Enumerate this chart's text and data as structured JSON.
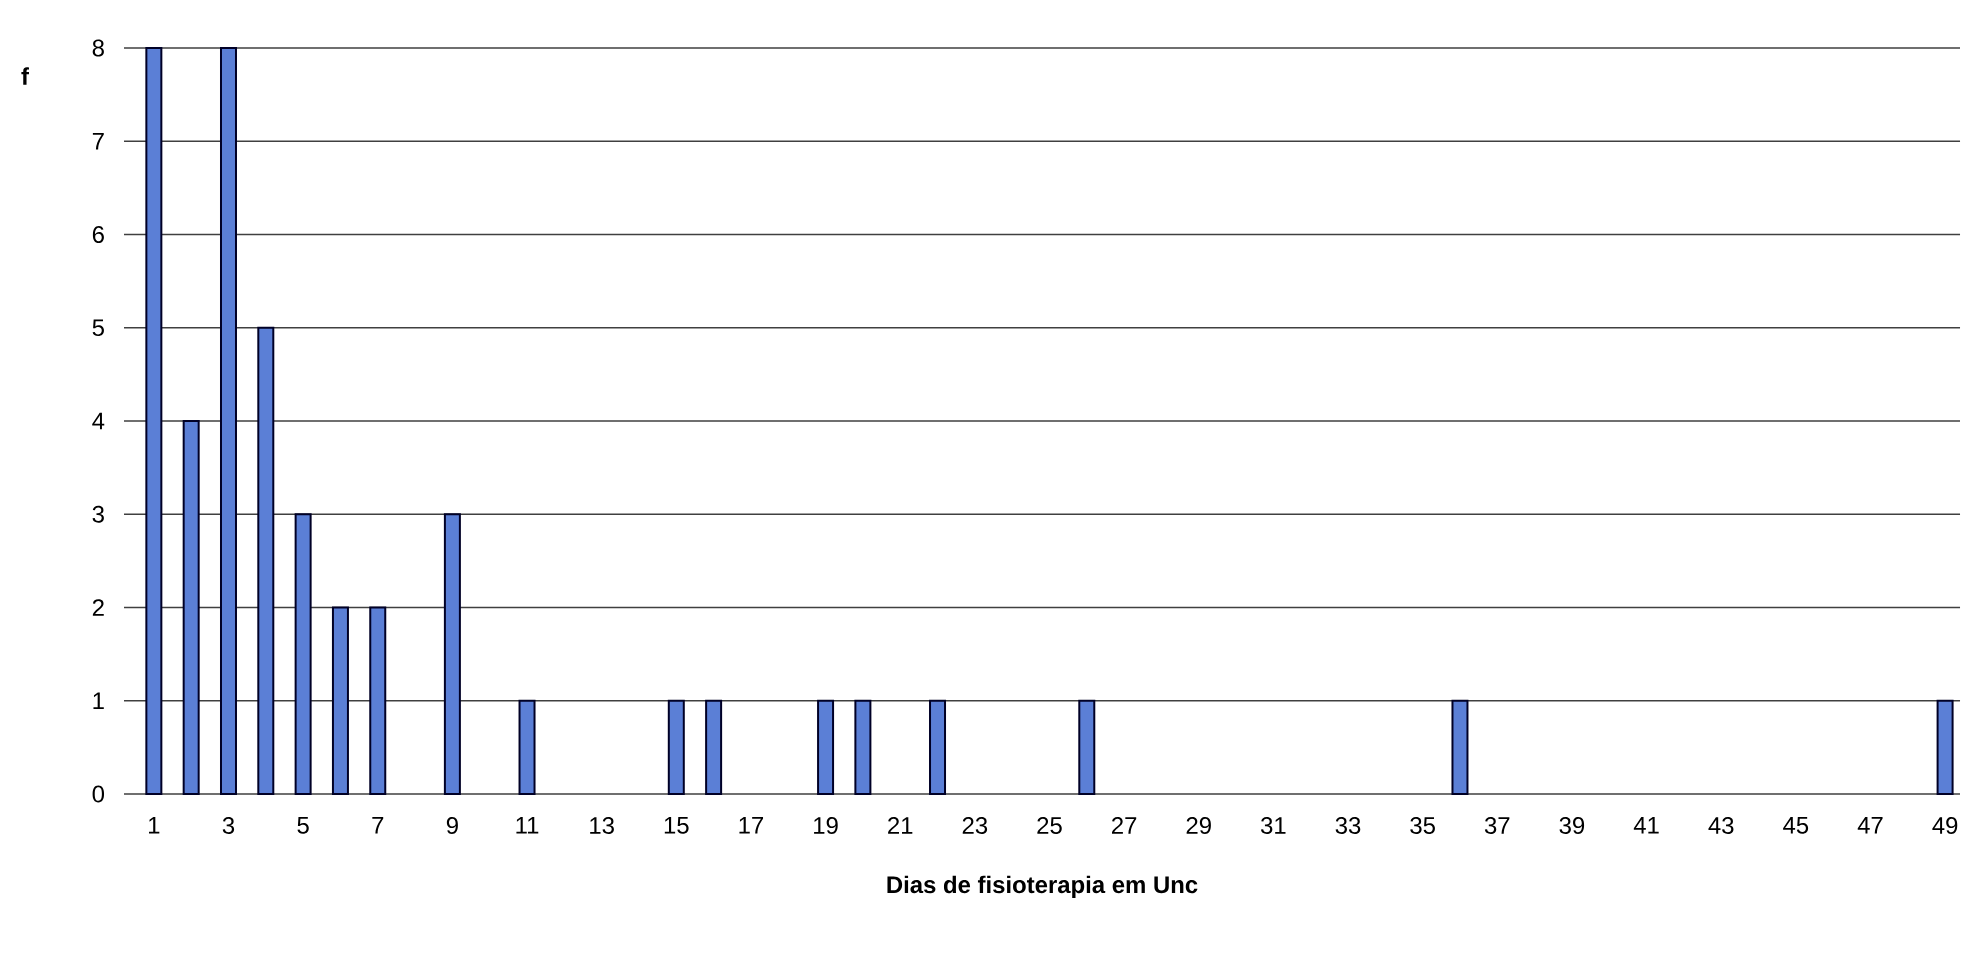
{
  "chart_data": {
    "type": "bar",
    "xlabel": "Dias de fisioterapia em Unc",
    "ylabel": "f",
    "categories": [
      "1",
      null,
      "3",
      null,
      "5",
      null,
      "7",
      null,
      "9",
      null,
      "11",
      null,
      "13",
      null,
      "15",
      null,
      "17",
      null,
      "19",
      null,
      "21",
      null,
      "23",
      null,
      "25",
      null,
      "27",
      null,
      "29",
      null,
      "31",
      null,
      "33",
      null,
      "35",
      null,
      "37",
      null,
      "39",
      null,
      "41",
      null,
      "43",
      null,
      "45",
      null,
      "47",
      null,
      "49"
    ],
    "values": [
      8,
      4,
      8,
      5,
      3,
      2,
      2,
      null,
      3,
      null,
      1,
      null,
      null,
      null,
      1,
      1,
      null,
      null,
      1,
      1,
      null,
      1,
      null,
      null,
      null,
      1,
      null,
      null,
      null,
      null,
      null,
      null,
      null,
      null,
      null,
      1,
      null,
      null,
      null,
      null,
      null,
      null,
      null,
      null,
      null,
      null,
      null,
      null,
      1
    ],
    "color": "#5b7fd6",
    "ylim": [
      0,
      8
    ],
    "yticks": [
      0,
      1,
      2,
      3,
      4,
      5,
      6,
      7,
      8
    ],
    "grid": "y"
  }
}
